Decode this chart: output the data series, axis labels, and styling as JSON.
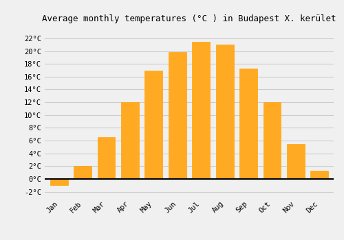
{
  "months": [
    "Jan",
    "Feb",
    "Mar",
    "Apr",
    "May",
    "Jun",
    "Jul",
    "Aug",
    "Sep",
    "Oct",
    "Nov",
    "Dec"
  ],
  "values": [
    -1.0,
    2.0,
    6.5,
    12.0,
    17.0,
    19.8,
    21.5,
    21.0,
    17.3,
    12.0,
    5.5,
    1.3
  ],
  "bar_color": "#FFAA22",
  "bar_edge_color": "#FFA500",
  "title": "Average monthly temperatures (°C ) in Budapest X. kerület",
  "ylabel_ticks": [
    "-2°C",
    "0°C",
    "2°C",
    "4°C",
    "6°C",
    "8°C",
    "10°C",
    "12°C",
    "14°C",
    "16°C",
    "18°C",
    "20°C",
    "22°C"
  ],
  "ytick_values": [
    -2,
    0,
    2,
    4,
    6,
    8,
    10,
    12,
    14,
    16,
    18,
    20,
    22
  ],
  "ylim": [
    -2.8,
    23.5
  ],
  "background_color": "#f0f0f0",
  "grid_color": "#cccccc",
  "title_fontsize": 9,
  "tick_fontsize": 7.5,
  "zero_line_color": "#000000",
  "bar_width": 0.75
}
